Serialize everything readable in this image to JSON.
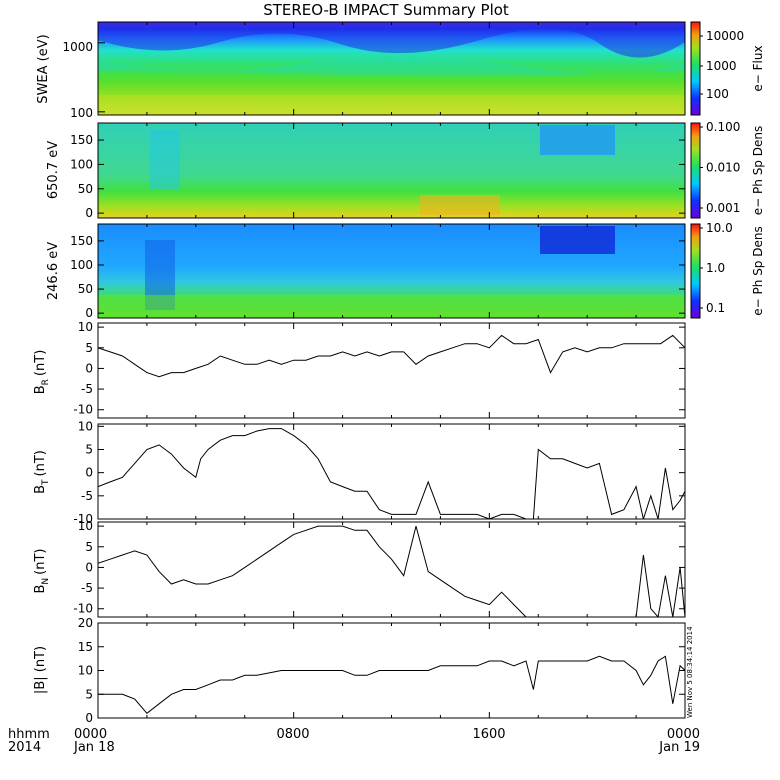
{
  "title": "STEREO-B IMPACT Summary Plot",
  "stamp": "Wen Nov 5 08:34:14 2014",
  "x_axis": {
    "tick_labels": [
      "0000",
      "0800",
      "1600",
      "0000"
    ],
    "date_labels": [
      "Jan 18",
      "Jan 19"
    ],
    "corner_labels": [
      "hhmm",
      "2014"
    ]
  },
  "chart_data": [
    {
      "type": "heatmap",
      "ylabel": "SWEA (eV)",
      "ylim": [
        90,
        2000
      ],
      "yscale": "log",
      "yticks": [
        "1000",
        "100"
      ],
      "colorbar": {
        "label": "e− Flux",
        "scale": "log",
        "range": [
          30,
          50000
        ],
        "tick_labels": [
          "10000",
          "1000",
          "100"
        ]
      }
    },
    {
      "type": "heatmap",
      "ylabel": "650.7 eV",
      "ylim": [
        -10,
        185
      ],
      "yticks": [
        "150",
        "100",
        "50",
        "0"
      ],
      "colorbar": {
        "label": "e− Ph Sp Dens",
        "scale": "log",
        "range": [
          0.001,
          0.1
        ],
        "tick_labels": [
          "0.100",
          "0.010",
          "0.001"
        ]
      }
    },
    {
      "type": "heatmap",
      "ylabel": "246.6 eV",
      "ylim": [
        -10,
        185
      ],
      "yticks": [
        "150",
        "100",
        "50",
        "0"
      ],
      "colorbar": {
        "label": "e− Ph Sp Dens",
        "scale": "log",
        "range": [
          0.1,
          10
        ],
        "tick_labels": [
          "10.0",
          "1.0",
          "0.1"
        ]
      }
    },
    {
      "type": "line",
      "ylabel": "B",
      "ylabel_sub": "R",
      "ylabel_unit": "(nT)",
      "ylim": [
        -12,
        11
      ],
      "yticks": [
        "10",
        "5",
        "0",
        "-5",
        "-10"
      ],
      "x_hours": [
        0,
        0.5,
        1,
        1.5,
        2,
        2.5,
        3,
        3.5,
        4,
        4.5,
        5,
        5.5,
        6,
        6.5,
        7,
        7.5,
        8,
        8.5,
        9,
        9.5,
        10,
        10.5,
        11,
        11.5,
        12,
        12.5,
        13,
        13.5,
        14,
        14.5,
        15,
        15.5,
        16,
        16.5,
        17,
        17.5,
        18,
        18.5,
        19,
        19.5,
        20,
        20.5,
        21,
        21.5,
        22,
        22.5,
        23,
        23.5,
        24
      ],
      "values": [
        5,
        4,
        3,
        1,
        -1,
        -2,
        -1,
        -1,
        0,
        1,
        3,
        2,
        1,
        1,
        2,
        1,
        2,
        2,
        3,
        3,
        4,
        3,
        4,
        3,
        4,
        4,
        1,
        3,
        4,
        5,
        6,
        6,
        5,
        8,
        6,
        6,
        7,
        -1,
        4,
        5,
        4,
        5,
        5,
        6,
        6,
        6,
        6,
        8,
        5
      ]
    },
    {
      "type": "line",
      "ylabel": "B",
      "ylabel_sub": "T",
      "ylabel_unit": "(nT)",
      "ylim": [
        -10,
        10.5
      ],
      "yticks": [
        "10",
        "5",
        "0",
        "-5",
        "-10"
      ],
      "x_hours": [
        0,
        0.5,
        1,
        1.5,
        2,
        2.5,
        3,
        3.5,
        4,
        4.2,
        4.5,
        5,
        5.5,
        6,
        6.5,
        7,
        7.5,
        8,
        8.5,
        9,
        9.5,
        10,
        10.5,
        11,
        11.5,
        12,
        12.5,
        13,
        13.5,
        14,
        14.5,
        15,
        15.5,
        16,
        16.5,
        17,
        17.5,
        17.8,
        18,
        18.5,
        19,
        19.5,
        20,
        20.5,
        21,
        21.5,
        22,
        22.3,
        22.6,
        22.9,
        23.2,
        23.5,
        23.8,
        24
      ],
      "values": [
        -3,
        -2,
        -1,
        2,
        5,
        6,
        4,
        1,
        -1,
        3,
        5,
        7,
        8,
        8,
        9,
        9.5,
        9.5,
        8,
        6,
        3,
        -2,
        -3,
        -4,
        -4,
        -8,
        -9,
        -9,
        -9,
        -2,
        -9,
        -9,
        -9,
        -9,
        -10,
        -9,
        -9,
        -10,
        -10,
        5,
        3,
        3,
        2,
        1,
        2,
        -9,
        -8,
        -3,
        -10,
        -5,
        -10,
        1,
        -8,
        -6,
        -4
      ]
    },
    {
      "type": "line",
      "ylabel": "B",
      "ylabel_sub": "N",
      "ylabel_unit": "(nT)",
      "ylim": [
        -12,
        11
      ],
      "yticks": [
        "10",
        "5",
        "0",
        "-5",
        "-10"
      ],
      "x_hours": [
        0,
        0.5,
        1,
        1.5,
        2,
        2.5,
        3,
        3.5,
        4,
        4.5,
        5,
        5.5,
        6,
        6.5,
        7,
        7.5,
        8,
        8.5,
        9,
        9.5,
        10,
        10.5,
        11,
        11.5,
        12,
        12.5,
        13,
        13.5,
        14,
        14.5,
        15,
        15.5,
        16,
        16.5,
        17,
        17.5,
        18,
        18.5,
        19,
        19.5,
        20,
        20.5,
        21,
        21.5,
        22,
        22.3,
        22.6,
        22.9,
        23.2,
        23.5,
        23.8,
        24
      ],
      "values": [
        1,
        2,
        3,
        4,
        3,
        -1,
        -4,
        -3,
        -4,
        -4,
        -3,
        -2,
        0,
        2,
        4,
        6,
        8,
        9,
        10,
        10,
        10,
        9,
        9,
        5,
        2,
        -2,
        10,
        -1,
        -3,
        -5,
        -7,
        -8,
        -9,
        -6,
        -9,
        -12,
        -12,
        -12,
        -12,
        -12,
        -12,
        -12,
        -12,
        -12,
        -12,
        3,
        -10,
        -12,
        -2,
        -12,
        0,
        -12
      ]
    },
    {
      "type": "line",
      "ylabel": "|B| (nT)",
      "ylim": [
        0,
        20
      ],
      "yticks": [
        "20",
        "15",
        "10",
        "5",
        "0"
      ],
      "x_hours": [
        0,
        0.5,
        1,
        1.5,
        2,
        2.5,
        3,
        3.5,
        4,
        4.5,
        5,
        5.5,
        6,
        6.5,
        7,
        7.5,
        8,
        8.5,
        9,
        9.5,
        10,
        10.5,
        11,
        11.5,
        12,
        12.5,
        13,
        13.5,
        14,
        14.5,
        15,
        15.5,
        16,
        16.5,
        17,
        17.5,
        17.8,
        18,
        18.5,
        19,
        19.5,
        20,
        20.5,
        21,
        21.5,
        22,
        22.3,
        22.6,
        22.9,
        23.2,
        23.5,
        23.8,
        24
      ],
      "values": [
        5,
        5,
        5,
        4,
        1,
        3,
        5,
        6,
        6,
        7,
        8,
        8,
        9,
        9,
        9.5,
        10,
        10,
        10,
        10,
        10,
        10,
        9,
        9,
        10,
        10,
        10,
        10,
        10,
        11,
        11,
        11,
        11,
        12,
        12,
        11,
        12,
        6,
        12,
        12,
        12,
        12,
        12,
        13,
        12,
        12,
        10,
        7,
        9,
        12,
        13,
        3,
        11,
        10
      ]
    }
  ]
}
